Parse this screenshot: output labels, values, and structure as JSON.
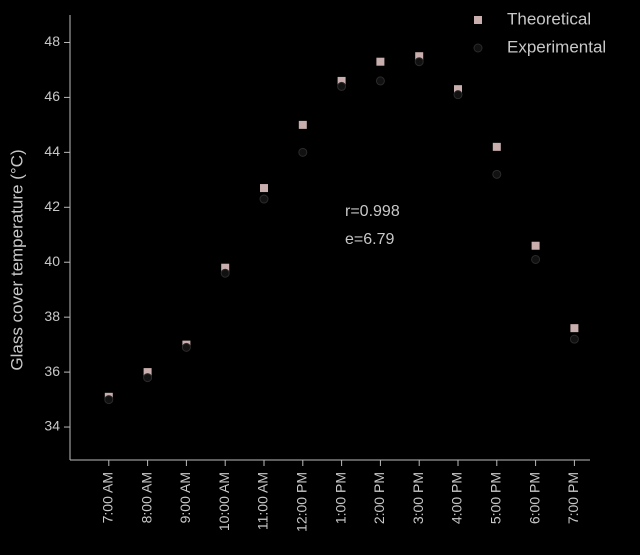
{
  "chart_data": {
    "type": "scatter",
    "y_label": "Glass cover temperature (°C)",
    "categories": [
      "7:00 AM",
      "8:00 AM",
      "9:00 AM",
      "10:00 AM",
      "11:00 AM",
      "12:00 PM",
      "1:00 PM",
      "2:00 PM",
      "3:00 PM",
      "4:00 PM",
      "5:00 PM",
      "6:00 PM",
      "7:00 PM"
    ],
    "series": [
      {
        "name": "Theoretical",
        "color": "#c9aeae",
        "marker": "square",
        "values": [
          35.1,
          36.0,
          37.0,
          39.8,
          42.7,
          45.0,
          46.6,
          47.3,
          47.5,
          46.3,
          44.2,
          40.6,
          37.6
        ]
      },
      {
        "name": "Experimental",
        "color": "#111111",
        "marker": "circle",
        "values": [
          35.0,
          35.8,
          36.9,
          39.6,
          42.3,
          44.0,
          46.4,
          46.6,
          47.3,
          46.1,
          43.2,
          40.1,
          37.2
        ]
      }
    ],
    "annotations": [
      "r=0.998",
      "e=6.79"
    ],
    "ylim": [
      32.8,
      49
    ],
    "yticks": [
      34,
      36,
      38,
      40,
      42,
      44,
      46,
      48
    ],
    "legend": "top-right"
  }
}
